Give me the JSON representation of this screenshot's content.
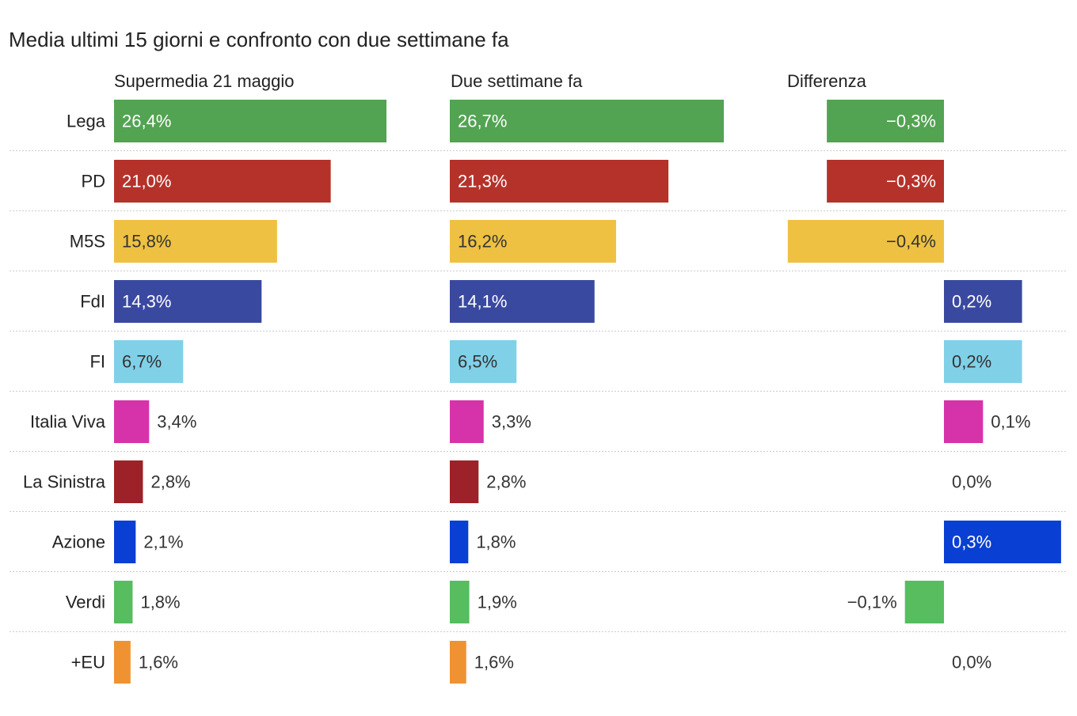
{
  "chart_data": {
    "type": "bar",
    "orientation": "horizontal",
    "title": "Media ultimi 15 giorni e confronto con due settimane fa",
    "categories": [
      "Lega",
      "PD",
      "M5S",
      "FdI",
      "FI",
      "Italia Viva",
      "La Sinistra",
      "Azione",
      "Verdi",
      "+EU"
    ],
    "colors": [
      "#52a352",
      "#b5322a",
      "#efc142",
      "#3a49a0",
      "#80d0e8",
      "#d633ab",
      "#9c2128",
      "#0a3fd4",
      "#57bd5f",
      "#ef9232"
    ],
    "series": [
      {
        "name": "Supermedia 21 maggio",
        "values": [
          26.4,
          21.0,
          15.8,
          14.3,
          6.7,
          3.4,
          2.8,
          2.1,
          1.8,
          1.6
        ]
      },
      {
        "name": "Due settimane fa",
        "values": [
          26.7,
          21.3,
          16.2,
          14.1,
          6.5,
          3.3,
          2.8,
          1.8,
          1.9,
          1.6
        ]
      },
      {
        "name": "Differenza",
        "values": [
          -0.3,
          -0.3,
          -0.4,
          0.2,
          0.2,
          0.1,
          0.0,
          0.3,
          -0.1,
          0.0
        ]
      }
    ],
    "value_format": "percent, one decimal, comma separator",
    "grid": false,
    "legend": "none"
  }
}
